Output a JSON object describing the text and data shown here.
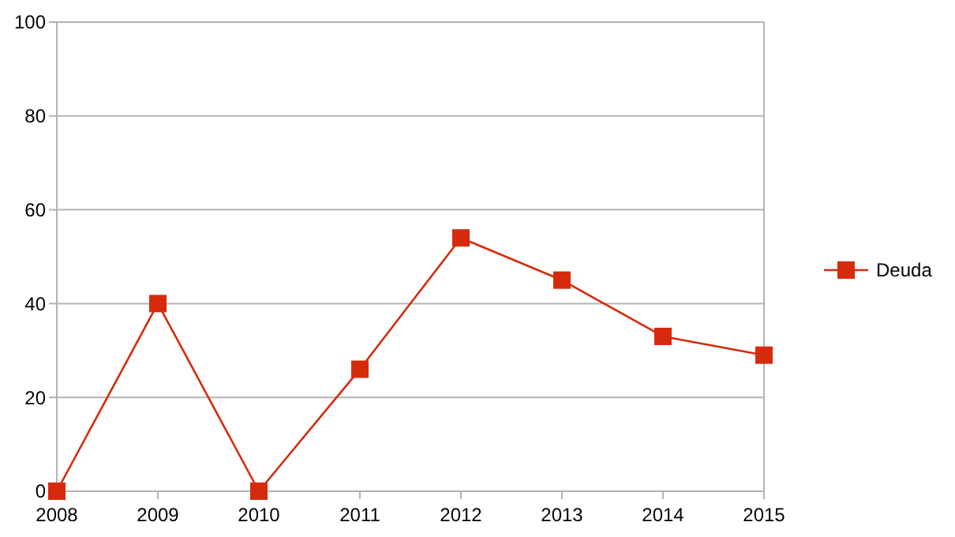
{
  "chart_data": {
    "type": "line",
    "categories": [
      "2008",
      "2009",
      "2010",
      "2011",
      "2012",
      "2013",
      "2014",
      "2015"
    ],
    "series": [
      {
        "name": "Deuda",
        "color": "#d52b0c",
        "values": [
          0,
          40,
          0,
          26,
          54,
          45,
          33,
          29
        ]
      }
    ],
    "ylim": [
      0,
      100
    ],
    "yticks": [
      0,
      20,
      40,
      60,
      80,
      100
    ],
    "grid": "y",
    "legend": "right",
    "marker": "square",
    "line_style": "solid"
  }
}
